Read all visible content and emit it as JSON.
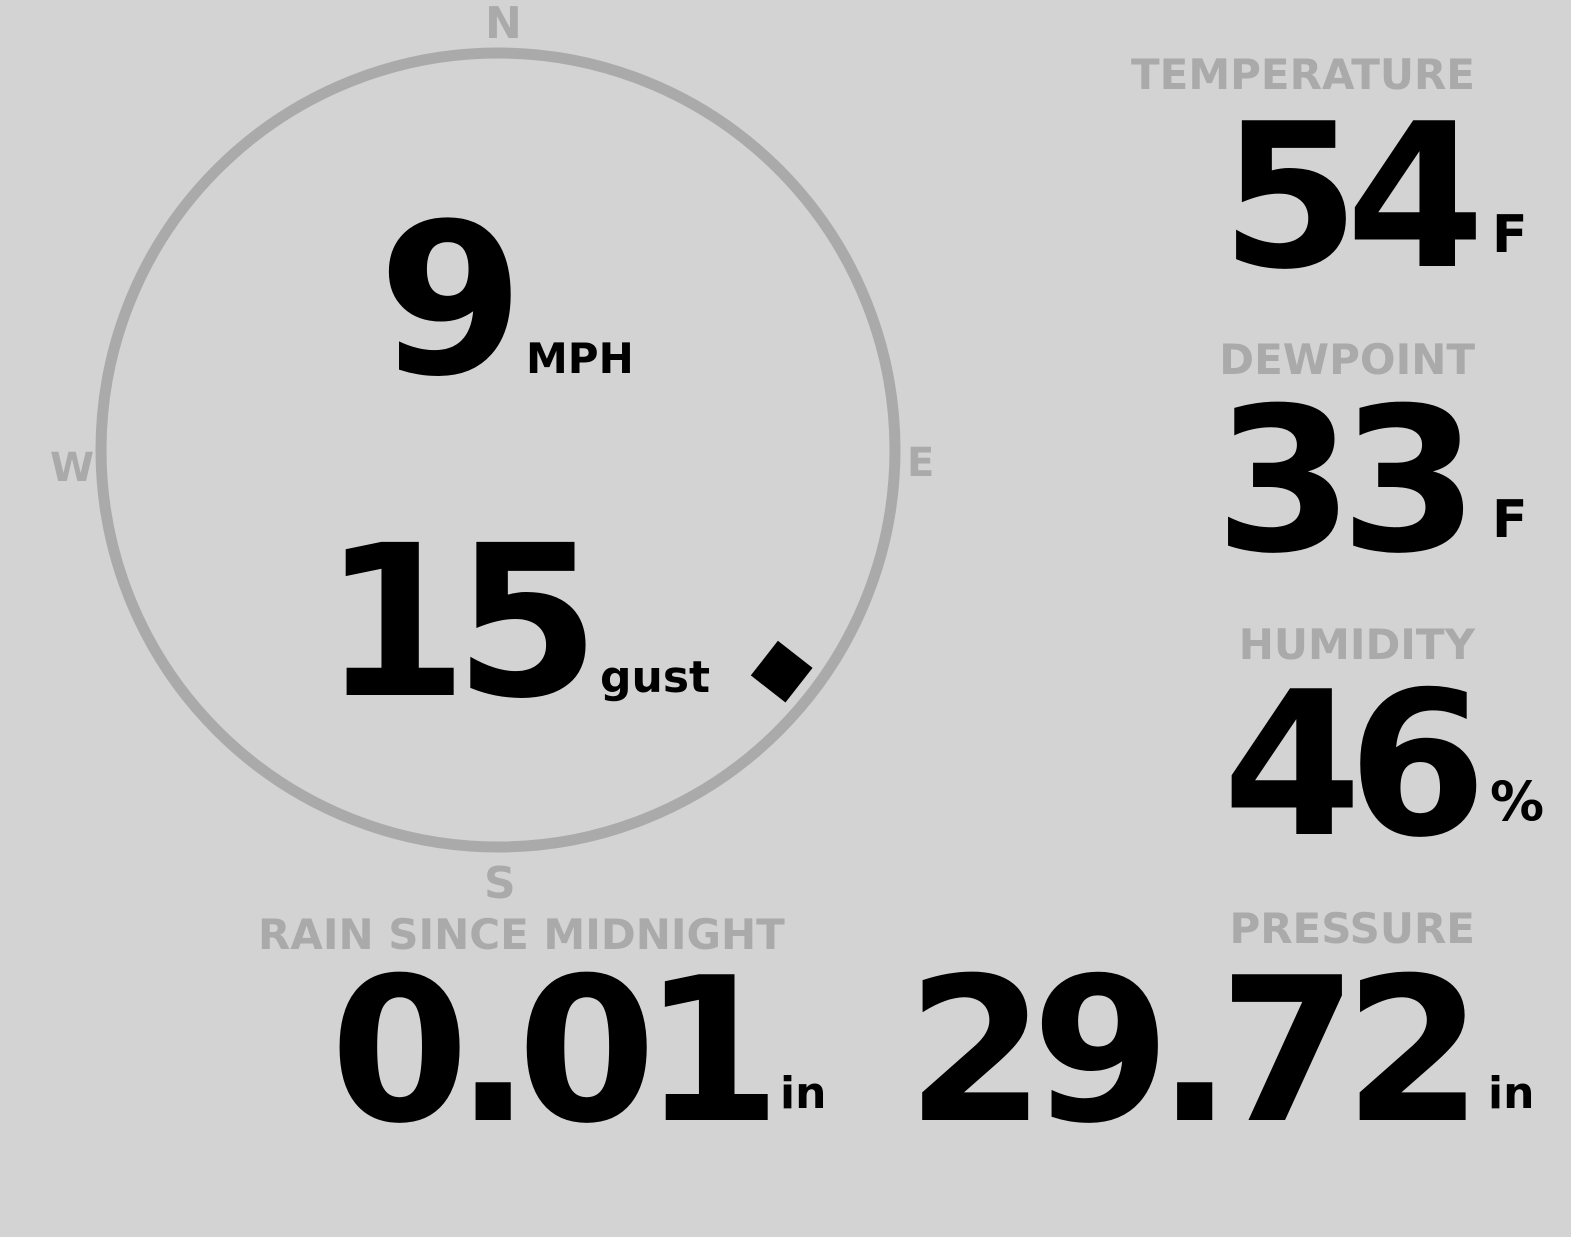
{
  "wind": {
    "compass": {
      "north": "N",
      "east": "E",
      "south": "S",
      "west": "W"
    },
    "speed": "9",
    "speed_unit": "MPH",
    "gust": "15",
    "gust_label": "gust",
    "direction_deg": 128,
    "ring_color": "#aaaaaa"
  },
  "temperature": {
    "label": "TEMPERATURE",
    "value": "54",
    "unit": "F"
  },
  "dewpoint": {
    "label": "DEWPOINT",
    "value": "33",
    "unit": "F"
  },
  "humidity": {
    "label": "HUMIDITY",
    "value": "46",
    "unit": "%"
  },
  "pressure": {
    "label": "PRESSURE",
    "value": "29.72",
    "unit": "in"
  },
  "rain": {
    "label": "RAIN SINCE MIDNIGHT",
    "value": "0.01",
    "unit": "in"
  },
  "colors": {
    "background": "#d3d3d3",
    "label": "#aaaaaa",
    "value": "#000000"
  }
}
